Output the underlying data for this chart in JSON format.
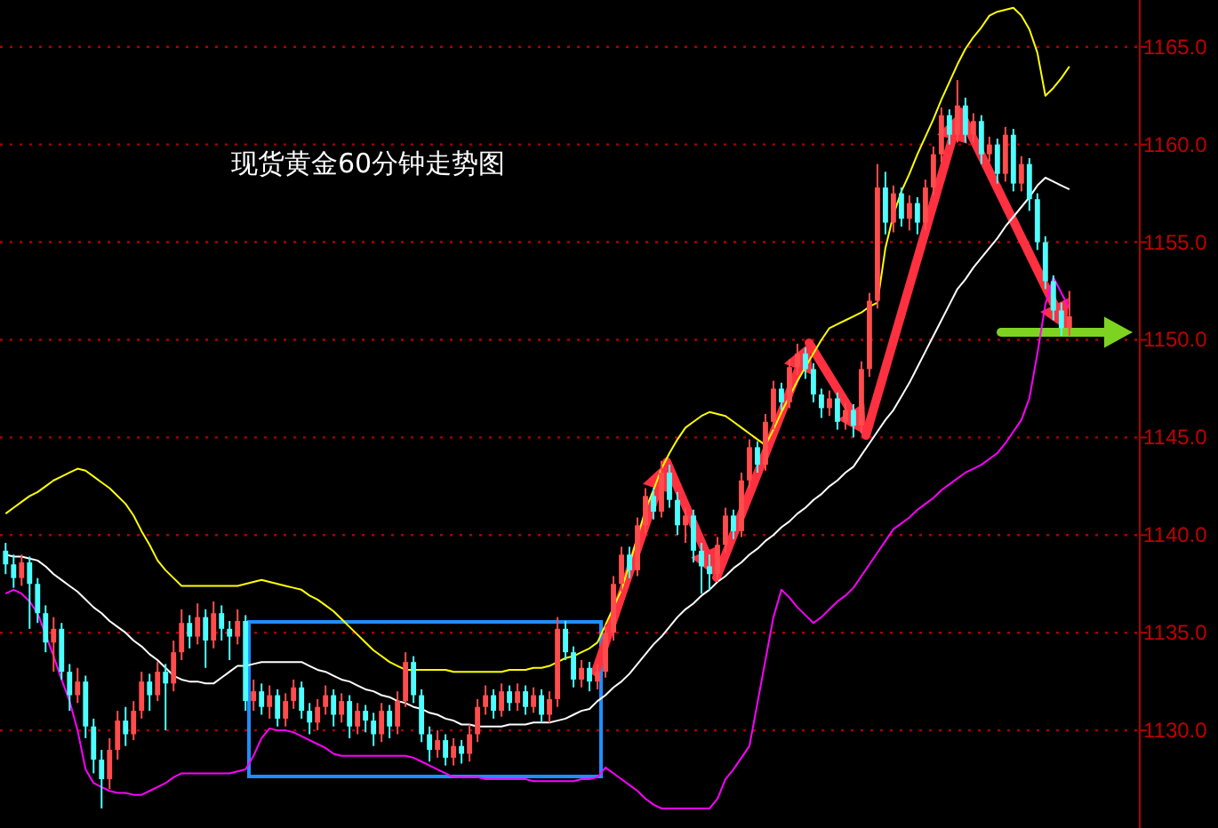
{
  "chart_data": {
    "type": "candlestick",
    "title": "现货黄金60分钟走势图",
    "grid": "y",
    "tick_labels": "y",
    "colors": [
      "#4dffff",
      "#4dffff",
      "#ff4d4d",
      "#4dffff",
      "#4dffff",
      "#4dffff",
      "#ff4d4d",
      "#4dffff",
      "#4dffff",
      "#ff4d4d",
      "#4dffff",
      "#4dffff",
      "#4dffff",
      "#ff4d4d",
      "#ff4d4d",
      "#4dffff",
      "#ff4d4d",
      "#ff4d4d",
      "#4dffff",
      "#ff4d4d",
      "#4dffff",
      "#ff4d4d",
      "#ff4d4d",
      "#4dffff",
      "#ff4d4d",
      "#4dffff",
      "#ff4d4d",
      "#4dffff",
      "#4dffff",
      "#ff4d4d",
      "#4dffff",
      "#ff4d4d",
      "#4dffff",
      "#ff4d4d",
      "#4dffff",
      "#ff4d4d",
      "#ff4d4d",
      "#4dffff",
      "#4dffff",
      "#ff4d4d",
      "#ff4d4d",
      "#4dffff",
      "#ff4d4d",
      "#4dffff",
      "#ff4d4d",
      "#4dffff",
      "#4dffff",
      "#ff4d4d",
      "#4dffff",
      "#ff4d4d",
      "#ff4d4d",
      "#4dffff",
      "#4dffff",
      "#4dffff",
      "#ff4d4d",
      "#4dffff",
      "#ff4d4d",
      "#4dffff",
      "#ff4d4d",
      "#ff4d4d",
      "#ff4d4d",
      "#4dffff",
      "#ff4d4d",
      "#4dffff",
      "#ff4d4d",
      "#4dffff",
      "#ff4d4d",
      "#4dffff",
      "#ff4d4d",
      "#ff4d4d",
      "#4dffff",
      "#4dffff",
      "#ff4d4d",
      "#4dffff",
      "#ff4d4d",
      "#ff4d4d",
      "#ff4d4d",
      "#ff4d4d",
      "#4dffff",
      "#ff4d4d",
      "#ff4d4d",
      "#4dffff",
      "#ff4d4d",
      "#4dffff",
      "#4dffff",
      "#ff4d4d",
      "#4dffff",
      "#4dffff",
      "#4dffff",
      "#ff4d4d",
      "#ff4d4d",
      "#4dffff",
      "#ff4d4d",
      "#ff4d4d",
      "#4dffff",
      "#ff4d4d",
      "#ff4d4d",
      "#4dffff",
      "#ff4d4d",
      "#ff4d4d",
      "#4dffff",
      "#4dffff",
      "#4dffff",
      "#ff4d4d",
      "#4dffff",
      "#ff4d4d",
      "#4dffff",
      "#ff4d4d",
      "#ff4d4d",
      "#ff4d4d",
      "#4dffff",
      "#ff4d4d",
      "#4dffff",
      "#ff4d4d",
      "#4dffff",
      "#ff4d4d",
      "#ff4d4d",
      "#ff4d4d",
      "#4dffff",
      "#ff4d4d",
      "#4dffff",
      "#ff4d4d",
      "#4dffff",
      "#ff4d4d",
      "#4dffff",
      "#ff4d4d",
      "#4dffff",
      "#ff4d4d",
      "#4dffff",
      "#4dffff",
      "#4dffff",
      "#4dffff",
      "#4dffff",
      "#ff4d4d"
    ],
    "ylim": [
      1125,
      1167.4
    ],
    "yticks": [
      {
        "value": 1130,
        "label": "1130.0"
      },
      {
        "value": 1135,
        "label": "1135.0"
      },
      {
        "value": 1140,
        "label": "1140.0"
      },
      {
        "value": 1145,
        "label": "1145.0"
      },
      {
        "value": 1150,
        "label": "1150.0"
      },
      {
        "value": 1155,
        "label": "1155.0"
      },
      {
        "value": 1160,
        "label": "1160.0"
      },
      {
        "value": 1165,
        "label": "1165.0"
      }
    ],
    "categories": [
      null,
      null,
      null,
      null,
      null,
      null,
      null,
      null,
      null,
      null,
      null,
      null,
      null,
      null,
      null,
      null,
      null,
      null,
      null,
      null,
      null,
      null,
      null,
      null,
      null,
      null,
      null,
      null,
      null,
      null,
      null,
      null,
      null,
      null,
      null,
      null,
      null,
      null,
      null,
      null,
      null,
      null,
      null,
      null,
      null,
      null,
      null,
      null,
      null,
      null,
      null,
      null,
      null,
      null,
      null,
      null,
      null,
      null,
      null,
      null,
      null,
      null,
      null,
      null,
      null,
      null,
      null,
      null,
      null,
      null,
      null,
      null,
      null,
      null,
      null,
      null,
      null,
      null,
      null,
      null,
      null,
      null,
      null,
      null,
      null,
      null,
      null,
      null,
      null,
      null,
      null,
      null,
      null,
      null,
      null,
      null,
      null,
      null,
      null,
      null,
      null,
      null,
      null,
      null,
      null,
      null,
      null,
      null,
      null,
      null,
      null,
      null,
      null,
      null,
      null,
      null,
      null,
      null,
      null,
      null,
      null,
      null,
      null,
      null,
      null,
      null,
      null,
      null,
      null,
      null,
      null,
      null,
      null,
      null
    ],
    "ohlc": [
      [
        1139.2,
        1139.6,
        1138.0,
        1138.5
      ],
      [
        1138.5,
        1139.0,
        1137.3,
        1137.8
      ],
      [
        1137.8,
        1139.0,
        1137.4,
        1138.6
      ],
      [
        1138.6,
        1138.9,
        1135.2,
        1137.5
      ],
      [
        1137.5,
        1137.8,
        1135.5,
        1136.0
      ],
      [
        1136.0,
        1136.4,
        1134.0,
        1134.5
      ],
      [
        1134.5,
        1135.8,
        1133.0,
        1135.2
      ],
      [
        1135.2,
        1135.5,
        1132.6,
        1133.0
      ],
      [
        1133.0,
        1133.4,
        1131.0,
        1131.8
      ],
      [
        1131.8,
        1133.2,
        1131.4,
        1132.5
      ],
      [
        1132.5,
        1132.8,
        1129.6,
        1130.2
      ],
      [
        1130.2,
        1130.6,
        1127.8,
        1128.5
      ],
      [
        1128.5,
        1129.0,
        1126.0,
        1127.5
      ],
      [
        1127.5,
        1129.6,
        1127.0,
        1129.0
      ],
      [
        1129.0,
        1131.0,
        1128.5,
        1130.5
      ],
      [
        1130.5,
        1131.2,
        1129.2,
        1129.8
      ],
      [
        1129.8,
        1131.5,
        1129.5,
        1131.0
      ],
      [
        1131.0,
        1133.0,
        1130.6,
        1132.5
      ],
      [
        1132.5,
        1132.9,
        1131.0,
        1131.8
      ],
      [
        1131.8,
        1133.5,
        1131.5,
        1133.0
      ],
      [
        1133.0,
        1133.4,
        1130.0,
        1132.4
      ],
      [
        1132.4,
        1134.6,
        1132.0,
        1134.0
      ],
      [
        1134.0,
        1136.2,
        1133.6,
        1135.5
      ],
      [
        1135.5,
        1135.9,
        1134.2,
        1134.8
      ],
      [
        1134.8,
        1136.5,
        1134.4,
        1135.8
      ],
      [
        1135.8,
        1136.2,
        1133.2,
        1134.6
      ],
      [
        1134.6,
        1136.6,
        1134.2,
        1136.0
      ],
      [
        1136.0,
        1136.4,
        1134.6,
        1135.2
      ],
      [
        1135.2,
        1135.6,
        1133.6,
        1134.8
      ],
      [
        1134.8,
        1136.2,
        1134.4,
        1135.6
      ],
      [
        1135.6,
        1135.9,
        1131.0,
        1131.5
      ],
      [
        1131.5,
        1132.6,
        1131.0,
        1132.0
      ],
      [
        1132.0,
        1132.4,
        1130.8,
        1131.2
      ],
      [
        1131.2,
        1132.3,
        1130.6,
        1131.8
      ],
      [
        1131.8,
        1132.1,
        1130.2,
        1130.6
      ],
      [
        1130.6,
        1131.9,
        1130.2,
        1131.5
      ],
      [
        1131.5,
        1132.6,
        1131.1,
        1132.2
      ],
      [
        1132.2,
        1132.5,
        1130.6,
        1131.0
      ],
      [
        1131.0,
        1131.4,
        1129.8,
        1130.4
      ],
      [
        1130.4,
        1131.6,
        1130.0,
        1131.2
      ],
      [
        1131.2,
        1132.3,
        1130.8,
        1131.8
      ],
      [
        1131.8,
        1132.1,
        1130.2,
        1130.8
      ],
      [
        1130.8,
        1131.9,
        1130.4,
        1131.5
      ],
      [
        1131.5,
        1131.8,
        1129.6,
        1130.2
      ],
      [
        1130.2,
        1131.4,
        1129.8,
        1131.0
      ],
      [
        1131.0,
        1131.3,
        1129.9,
        1130.5
      ],
      [
        1130.5,
        1130.9,
        1129.2,
        1129.8
      ],
      [
        1129.8,
        1131.4,
        1129.4,
        1131.0
      ],
      [
        1131.0,
        1131.3,
        1129.6,
        1130.2
      ],
      [
        1130.2,
        1132.0,
        1129.8,
        1131.5
      ],
      [
        1131.5,
        1134.0,
        1131.2,
        1133.5
      ],
      [
        1133.5,
        1133.8,
        1131.4,
        1131.8
      ],
      [
        1131.8,
        1132.1,
        1129.4,
        1129.8
      ],
      [
        1129.8,
        1130.2,
        1128.4,
        1129.0
      ],
      [
        1129.0,
        1130.0,
        1128.6,
        1129.5
      ],
      [
        1129.5,
        1129.8,
        1128.2,
        1128.6
      ],
      [
        1128.6,
        1129.6,
        1128.2,
        1129.2
      ],
      [
        1129.2,
        1129.5,
        1128.3,
        1128.8
      ],
      [
        1128.8,
        1130.3,
        1128.4,
        1129.8
      ],
      [
        1129.8,
        1131.6,
        1129.4,
        1131.2
      ],
      [
        1131.2,
        1132.3,
        1130.8,
        1131.8
      ],
      [
        1131.8,
        1132.1,
        1130.6,
        1131.0
      ],
      [
        1131.0,
        1132.4,
        1130.7,
        1132.0
      ],
      [
        1132.0,
        1132.3,
        1131.0,
        1131.4
      ],
      [
        1131.4,
        1132.4,
        1131.0,
        1132.0
      ],
      [
        1132.0,
        1132.3,
        1130.8,
        1131.2
      ],
      [
        1131.2,
        1132.2,
        1130.9,
        1131.8
      ],
      [
        1131.8,
        1132.1,
        1130.4,
        1130.8
      ],
      [
        1130.8,
        1132.0,
        1130.4,
        1131.6
      ],
      [
        1131.6,
        1135.8,
        1131.2,
        1135.2
      ],
      [
        1135.2,
        1135.6,
        1133.6,
        1134.0
      ],
      [
        1134.0,
        1134.3,
        1132.2,
        1132.6
      ],
      [
        1132.6,
        1133.6,
        1132.2,
        1133.2
      ],
      [
        1133.2,
        1133.5,
        1132.0,
        1132.5
      ],
      [
        1132.5,
        1133.4,
        1132.1,
        1133.0
      ],
      [
        1133.0,
        1135.4,
        1132.7,
        1135.0
      ],
      [
        1135.0,
        1137.9,
        1134.6,
        1137.5
      ],
      [
        1137.5,
        1139.4,
        1137.1,
        1139.0
      ],
      [
        1139.0,
        1139.4,
        1137.8,
        1138.2
      ],
      [
        1138.2,
        1140.9,
        1137.9,
        1140.5
      ],
      [
        1140.5,
        1142.4,
        1140.1,
        1142.0
      ],
      [
        1142.0,
        1142.4,
        1140.8,
        1141.2
      ],
      [
        1141.2,
        1143.8,
        1140.9,
        1143.2
      ],
      [
        1143.2,
        1143.6,
        1141.4,
        1141.8
      ],
      [
        1141.8,
        1142.2,
        1140.0,
        1140.5
      ],
      [
        1140.5,
        1141.4,
        1139.6,
        1141.0
      ],
      [
        1141.0,
        1141.3,
        1138.6,
        1139.2
      ],
      [
        1139.2,
        1139.6,
        1137.0,
        1138.4
      ],
      [
        1138.4,
        1139.0,
        1137.2,
        1138.0
      ],
      [
        1138.0,
        1139.9,
        1137.6,
        1139.5
      ],
      [
        1139.5,
        1141.4,
        1139.1,
        1141.0
      ],
      [
        1141.0,
        1141.3,
        1139.8,
        1140.2
      ],
      [
        1140.2,
        1143.2,
        1139.9,
        1142.8
      ],
      [
        1142.8,
        1144.9,
        1142.4,
        1144.5
      ],
      [
        1144.5,
        1144.8,
        1143.2,
        1143.6
      ],
      [
        1143.6,
        1146.2,
        1143.3,
        1145.8
      ],
      [
        1145.8,
        1147.9,
        1145.4,
        1147.5
      ],
      [
        1147.5,
        1147.8,
        1146.4,
        1146.8
      ],
      [
        1146.8,
        1149.0,
        1146.5,
        1148.6
      ],
      [
        1148.6,
        1149.8,
        1148.2,
        1149.3
      ],
      [
        1149.3,
        1149.6,
        1148.0,
        1148.5
      ],
      [
        1148.5,
        1148.8,
        1146.8,
        1147.2
      ],
      [
        1147.2,
        1147.5,
        1146.0,
        1146.5
      ],
      [
        1146.5,
        1147.4,
        1146.1,
        1147.0
      ],
      [
        1147.0,
        1147.3,
        1145.4,
        1145.8
      ],
      [
        1145.8,
        1146.8,
        1145.4,
        1146.4
      ],
      [
        1146.4,
        1146.7,
        1145.0,
        1145.6
      ],
      [
        1145.6,
        1148.9,
        1145.2,
        1148.5
      ],
      [
        1148.5,
        1152.4,
        1148.1,
        1152.0
      ],
      [
        1152.0,
        1159.0,
        1151.6,
        1157.8
      ],
      [
        1157.8,
        1158.6,
        1155.4,
        1156.0
      ],
      [
        1156.0,
        1157.9,
        1155.5,
        1157.5
      ],
      [
        1157.5,
        1157.8,
        1155.8,
        1156.2
      ],
      [
        1156.2,
        1157.4,
        1155.6,
        1157.0
      ],
      [
        1157.0,
        1157.3,
        1155.4,
        1156.0
      ],
      [
        1156.0,
        1158.2,
        1155.6,
        1157.8
      ],
      [
        1157.8,
        1159.9,
        1157.4,
        1159.5
      ],
      [
        1159.5,
        1161.9,
        1159.1,
        1161.5
      ],
      [
        1161.5,
        1161.8,
        1160.0,
        1160.5
      ],
      [
        1160.5,
        1163.3,
        1160.1,
        1162.0
      ],
      [
        1162.0,
        1162.4,
        1160.1,
        1160.5
      ],
      [
        1160.5,
        1161.6,
        1160.1,
        1161.2
      ],
      [
        1161.2,
        1161.5,
        1159.0,
        1159.5
      ],
      [
        1159.5,
        1160.4,
        1159.1,
        1160.0
      ],
      [
        1160.0,
        1160.3,
        1158.0,
        1158.5
      ],
      [
        1158.5,
        1160.9,
        1158.1,
        1160.5
      ],
      [
        1160.5,
        1160.8,
        1157.6,
        1158.0
      ],
      [
        1158.0,
        1159.4,
        1157.6,
        1159.0
      ],
      [
        1159.0,
        1159.3,
        1156.6,
        1157.2
      ],
      [
        1157.2,
        1157.5,
        1154.6,
        1155.0
      ],
      [
        1155.0,
        1155.3,
        1152.6,
        1153.0
      ],
      [
        1153.0,
        1153.3,
        1151.0,
        1151.5
      ],
      [
        1151.5,
        1151.9,
        1150.2,
        1150.6
      ],
      [
        1150.6,
        1152.5,
        1150.2,
        1151.2
      ]
    ],
    "series": [
      {
        "type": "line",
        "color": "#ffff00",
        "values": [
          1141.1,
          1141.4,
          1141.7,
          1142.0,
          1142.2,
          1142.5,
          1142.8,
          1143.0,
          1143.2,
          1143.4,
          1143.3,
          1143.0,
          1142.7,
          1142.4,
          1142.0,
          1141.6,
          1141.0,
          1140.2,
          1139.5,
          1138.7,
          1138.2,
          1137.8,
          1137.4,
          1137.4,
          1137.4,
          1137.4,
          1137.4,
          1137.4,
          1137.4,
          1137.4,
          1137.5,
          1137.6,
          1137.7,
          1137.6,
          1137.5,
          1137.4,
          1137.3,
          1137.2,
          1136.9,
          1136.7,
          1136.4,
          1136.1,
          1135.7,
          1135.3,
          1134.9,
          1134.5,
          1134.1,
          1133.8,
          1133.5,
          1133.3,
          1133.1,
          1133.1,
          1133.1,
          1133.1,
          1133.1,
          1133.1,
          1133.0,
          1133.0,
          1133.0,
          1133.0,
          1133.0,
          1133.0,
          1133.0,
          1133.1,
          1133.1,
          1133.1,
          1133.2,
          1133.2,
          1133.3,
          1133.5,
          1133.7,
          1133.8,
          1134.0,
          1134.2,
          1134.5,
          1135.4,
          1136.3,
          1137.2,
          1138.5,
          null,
          1141.3,
          1142.3,
          1143.4,
          1144.2,
          1144.9,
          1145.5,
          1145.8,
          1146.1,
          1146.3,
          1146.2,
          1146.1,
          1145.8,
          1145.5,
          1145.2,
          1144.9,
          1144.6,
          1145.4,
          1146.3,
          1147.1,
          1147.9,
          1148.6,
          1149.3,
          1150.0,
          1150.6,
          1150.8,
          1151.0,
          1151.2,
          1151.4,
          1151.7,
          1151.9,
          1154.7,
          1156.4,
          1157.6,
          1158.5,
          1159.5,
          1160.4,
          1161.3,
          1162.3,
          1163.2,
          1164.1,
          1164.9,
          1165.5,
          1166.0,
          1166.6,
          1166.8,
          1166.9,
          1167.0,
          1166.6,
          1165.9,
          1164.7,
          1162.5,
          1162.9,
          1163.4,
          1164.0
        ]
      },
      {
        "type": "line",
        "color": "#ffffff",
        "values": [
          1139.0,
          1138.9,
          1138.9,
          1138.8,
          1138.7,
          1138.4,
          1138.0,
          1137.7,
          1137.4,
          1137.1,
          1136.7,
          1136.3,
          1136.0,
          1135.6,
          1135.3,
          1135.0,
          1134.6,
          1134.3,
          1133.9,
          1133.6,
          1133.2,
          1132.8,
          1132.6,
          1132.5,
          1132.5,
          1132.4,
          1132.4,
          1132.7,
          1133.0,
          1133.3,
          1133.3,
          1133.4,
          1133.5,
          1133.5,
          1133.5,
          1133.5,
          1133.5,
          1133.5,
          1133.3,
          1133.1,
          1133.0,
          1132.8,
          1132.6,
          1132.5,
          1132.3,
          1132.1,
          1132.0,
          1131.8,
          1131.7,
          1131.5,
          1131.4,
          1131.2,
          1131.1,
          1130.9,
          1130.8,
          1130.6,
          1130.5,
          1130.3,
          1130.3,
          1130.2,
          1130.2,
          1130.2,
          1130.2,
          1130.3,
          1130.3,
          1130.3,
          1130.4,
          1130.4,
          1130.4,
          1130.5,
          1130.6,
          1130.8,
          1131.0,
          1131.1,
          1131.5,
          1131.8,
          1132.2,
          1132.5,
          1132.9,
          1133.4,
          1133.9,
          1134.4,
          1134.8,
          1135.3,
          1135.8,
          1136.2,
          1136.5,
          1136.9,
          1137.2,
          1137.6,
          1137.9,
          1138.3,
          1138.6,
          1139.0,
          1139.3,
          1139.7,
          1140.0,
          1140.4,
          1140.7,
          1141.1,
          1141.4,
          1141.8,
          1142.1,
          1142.5,
          1142.8,
          1143.2,
          1143.5,
          1144.1,
          1144.7,
          1145.3,
          1145.9,
          1146.4,
          1147.1,
          1147.8,
          1148.6,
          1149.4,
          1150.2,
          1151.0,
          1151.8,
          1152.6,
          1153.1,
          1153.7,
          1154.2,
          1154.7,
          1155.2,
          1155.8,
          1156.3,
          1156.8,
          1157.3,
          1157.9,
          1158.3,
          1158.1,
          1157.9,
          1157.7
        ]
      },
      {
        "type": "line",
        "color": "#ff00ff",
        "values": [
          1137.0,
          1137.2,
          1137.0,
          1136.6,
          1136.0,
          1134.9,
          1133.8,
          1132.6,
          1131.5,
          1130.0,
          1128.0,
          1127.3,
          1127.1,
          1126.9,
          1126.8,
          1126.8,
          1126.7,
          1126.7,
          1126.9,
          1127.1,
          1127.3,
          1127.6,
          1127.8,
          1127.8,
          1127.8,
          1127.8,
          1127.8,
          1127.8,
          1127.8,
          1127.9,
          1128.0,
          1128.7,
          1129.6,
          1130.1,
          1130.0,
          1130.0,
          1129.9,
          1129.7,
          1129.5,
          1129.3,
          1129.1,
          1128.8,
          1128.7,
          1128.7,
          1128.7,
          1128.7,
          1128.7,
          1128.7,
          1128.7,
          1128.7,
          1128.7,
          1128.6,
          1128.4,
          1128.2,
          1128.0,
          1127.8,
          1127.6,
          1127.6,
          1127.6,
          1127.6,
          1127.5,
          1127.5,
          1127.5,
          1127.5,
          1127.5,
          1127.5,
          1127.4,
          1127.4,
          1127.4,
          1127.4,
          1127.4,
          1127.4,
          1127.5,
          1127.5,
          1127.6,
          1128.1,
          1127.8,
          1127.5,
          1127.2,
          1126.9,
          1126.5,
          1126.2,
          1126.0,
          1126.0,
          1126.0,
          1126.0,
          1126.0,
          1126.0,
          1126.0,
          1126.5,
          1127.5,
          1128.0,
          1128.6,
          1129.2,
          1131.4,
          1133.6,
          1135.8,
          1137.2,
          1136.8,
          1136.3,
          1135.9,
          1135.5,
          1135.8,
          1136.2,
          1136.6,
          1136.9,
          1137.3,
          1137.9,
          1138.5,
          1139.1,
          1139.7,
          1140.3,
          1140.6,
          1140.9,
          1141.3,
          1141.6,
          1141.9,
          1142.3,
          1142.6,
          1142.9,
          1143.2,
          1143.4,
          1143.6,
          1143.9,
          1144.2,
          1144.7,
          1145.3,
          1145.9,
          1147.0,
          1149.3,
          1151.8,
          1153.2,
          1152.4,
          1151.6
        ]
      }
    ]
  }
}
